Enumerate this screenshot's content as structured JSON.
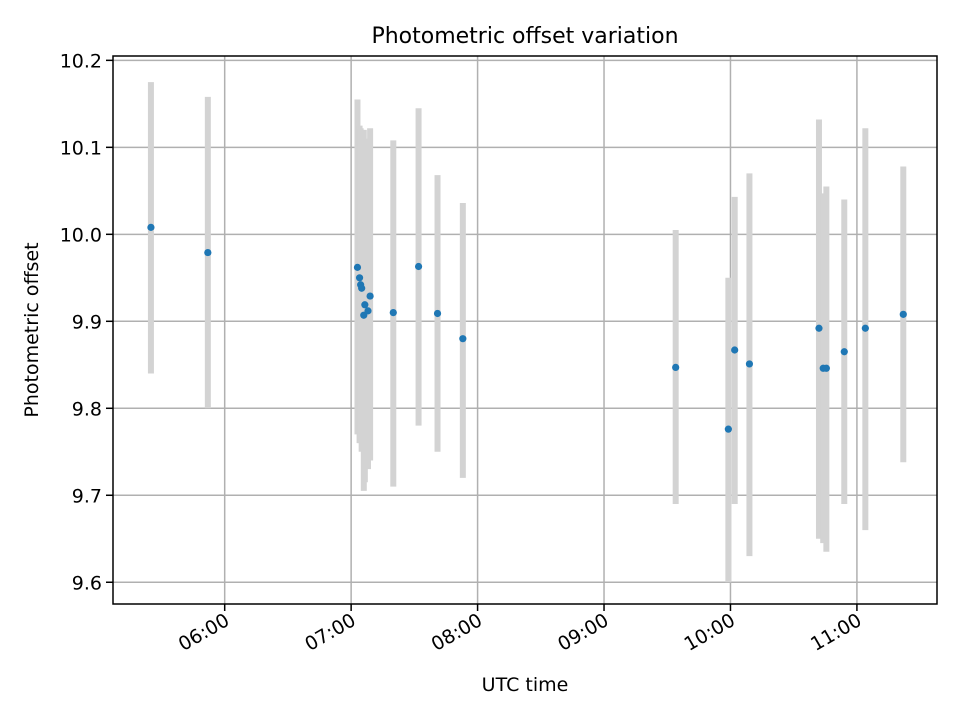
{
  "chart_data": {
    "type": "scatter",
    "title": "Photometric offset variation",
    "xlabel": "UTC time",
    "ylabel": "Photometric offset",
    "x_tick_labels": [
      "06:00",
      "07:00",
      "08:00",
      "09:00",
      "10:00",
      "11:00"
    ],
    "x_tick_minutes": [
      360,
      420,
      480,
      540,
      600,
      660
    ],
    "y_tick_labels": [
      "9.6",
      "9.7",
      "9.8",
      "9.9",
      "10.0",
      "10.1",
      "10.2"
    ],
    "y_ticks": [
      9.6,
      9.7,
      9.8,
      9.9,
      10.0,
      10.1,
      10.2
    ],
    "xlim_minutes": [
      307,
      698
    ],
    "ylim": [
      9.575,
      10.205
    ],
    "grid": true,
    "point_color": "#1f77b4",
    "errorbar_color": "#d3d3d3",
    "points": [
      {
        "time": "05:25",
        "minutes": 325,
        "y": 10.008,
        "lo": 9.84,
        "hi": 10.175
      },
      {
        "time": "05:52",
        "minutes": 352,
        "y": 9.979,
        "lo": 9.8,
        "hi": 10.158
      },
      {
        "time": "07:03",
        "minutes": 423,
        "y": 9.962,
        "lo": 9.77,
        "hi": 10.155
      },
      {
        "time": "07:04",
        "minutes": 424,
        "y": 9.95,
        "lo": 9.76,
        "hi": 10.125
      },
      {
        "time": "07:04",
        "minutes": 424.5,
        "y": 9.942,
        "lo": 9.76,
        "hi": 10.122
      },
      {
        "time": "07:05",
        "minutes": 425,
        "y": 9.938,
        "lo": 9.75,
        "hi": 10.12
      },
      {
        "time": "07:06",
        "minutes": 426,
        "y": 9.907,
        "lo": 9.705,
        "hi": 10.12
      },
      {
        "time": "07:06",
        "minutes": 426.5,
        "y": 9.919,
        "lo": 9.715,
        "hi": 10.11
      },
      {
        "time": "07:08",
        "minutes": 428,
        "y": 9.912,
        "lo": 9.73,
        "hi": 10.095
      },
      {
        "time": "07:09",
        "minutes": 429,
        "y": 9.929,
        "lo": 9.74,
        "hi": 10.122
      },
      {
        "time": "07:20",
        "minutes": 440,
        "y": 9.91,
        "lo": 9.71,
        "hi": 10.108
      },
      {
        "time": "07:32",
        "minutes": 452,
        "y": 9.963,
        "lo": 9.78,
        "hi": 10.145
      },
      {
        "time": "07:41",
        "minutes": 461,
        "y": 9.909,
        "lo": 9.75,
        "hi": 10.068
      },
      {
        "time": "07:53",
        "minutes": 473,
        "y": 9.88,
        "lo": 9.72,
        "hi": 10.036
      },
      {
        "time": "09:34",
        "minutes": 574,
        "y": 9.847,
        "lo": 9.69,
        "hi": 10.005
      },
      {
        "time": "09:59",
        "minutes": 599,
        "y": 9.776,
        "lo": 9.6,
        "hi": 9.95
      },
      {
        "time": "10:02",
        "minutes": 602,
        "y": 9.867,
        "lo": 9.69,
        "hi": 10.043
      },
      {
        "time": "10:09",
        "minutes": 609,
        "y": 9.851,
        "lo": 9.63,
        "hi": 10.07
      },
      {
        "time": "10:42",
        "minutes": 642,
        "y": 9.892,
        "lo": 9.65,
        "hi": 10.132
      },
      {
        "time": "10:44",
        "minutes": 644,
        "y": 9.846,
        "lo": 9.645,
        "hi": 10.047
      },
      {
        "time": "10:45",
        "minutes": 645.5,
        "y": 9.846,
        "lo": 9.635,
        "hi": 10.055
      },
      {
        "time": "10:54",
        "minutes": 654,
        "y": 9.865,
        "lo": 9.69,
        "hi": 10.04
      },
      {
        "time": "11:04",
        "minutes": 664,
        "y": 9.892,
        "lo": 9.66,
        "hi": 10.122
      },
      {
        "time": "11:22",
        "minutes": 682,
        "y": 9.908,
        "lo": 9.738,
        "hi": 10.078
      }
    ]
  }
}
